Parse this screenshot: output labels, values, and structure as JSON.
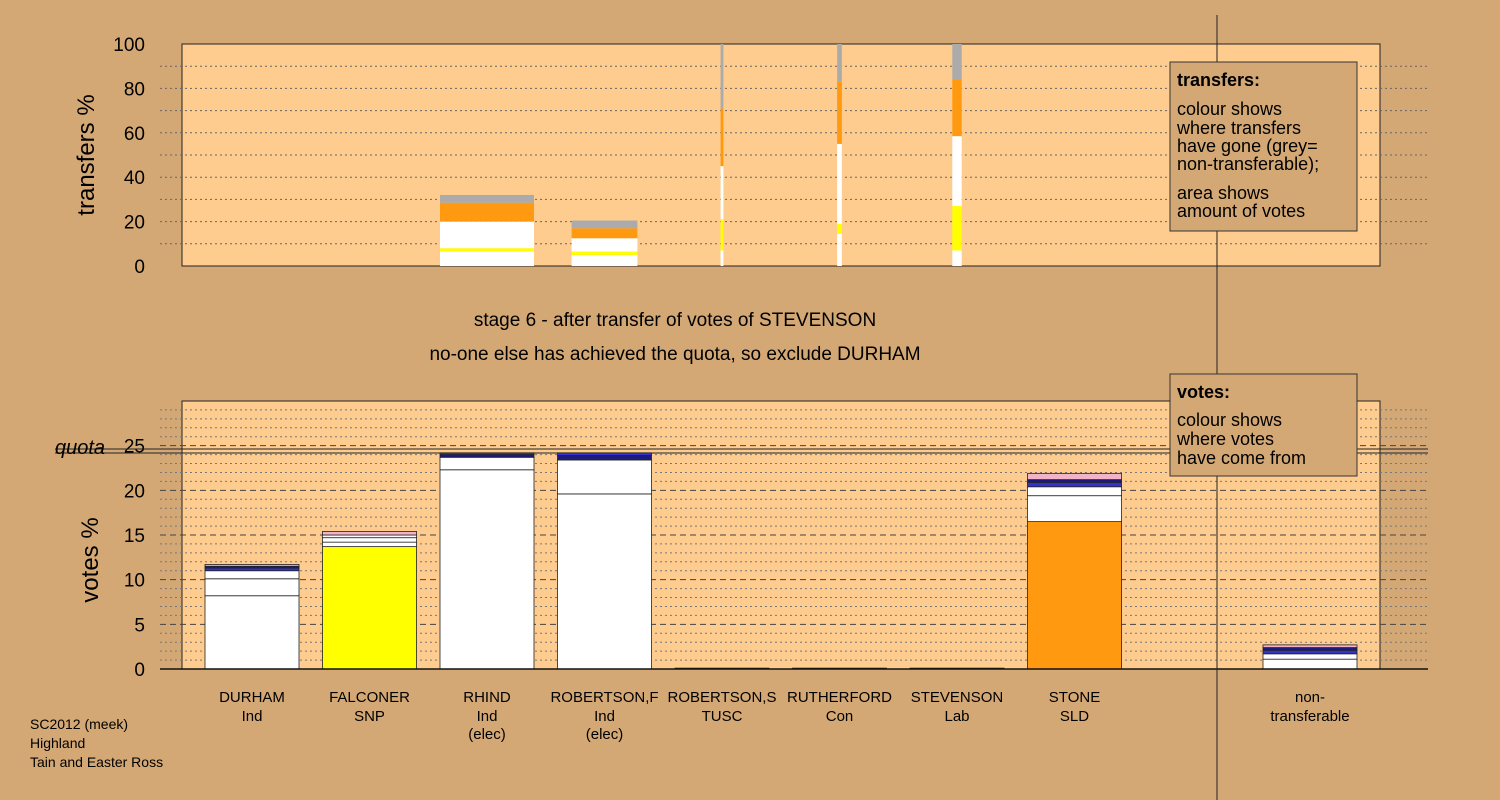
{
  "chart_data": [
    {
      "type": "bar",
      "stacked": true,
      "ylabel": "transfers %",
      "ylim": [
        0,
        100
      ],
      "yticks": [
        0,
        20,
        40,
        60,
        80,
        100
      ],
      "categories": [
        "DURHAM",
        "FALCONER",
        "RHIND",
        "ROBERTSON,F",
        "ROBERTSON,S",
        "RUTHERFORD",
        "STEVENSON",
        "STONE"
      ],
      "bars": [
        {
          "category": "RHIND",
          "width": 1.0,
          "segments": [
            {
              "from": 0,
              "to": 6.5,
              "color": "white"
            },
            {
              "from": 6.5,
              "to": 8,
              "color": "yellow"
            },
            {
              "from": 8,
              "to": 20,
              "color": "white"
            },
            {
              "from": 20,
              "to": 28.5,
              "color": "orange"
            },
            {
              "from": 28.5,
              "to": 32,
              "color": "grey"
            }
          ]
        },
        {
          "category": "ROBERTSON,F",
          "width": 0.7,
          "segments": [
            {
              "from": 0,
              "to": 5,
              "color": "white"
            },
            {
              "from": 5,
              "to": 6.5,
              "color": "yellow"
            },
            {
              "from": 6.5,
              "to": 12.5,
              "color": "white"
            },
            {
              "from": 12.5,
              "to": 17,
              "color": "orange"
            },
            {
              "from": 17,
              "to": 20.5,
              "color": "grey"
            }
          ]
        },
        {
          "category": "ROBERTSON,S",
          "width": 0.03,
          "segments": [
            {
              "from": 0,
              "to": 7,
              "color": "white"
            },
            {
              "from": 7,
              "to": 21,
              "color": "yellow"
            },
            {
              "from": 21,
              "to": 45,
              "color": "white"
            },
            {
              "from": 45,
              "to": 71,
              "color": "orange"
            },
            {
              "from": 71,
              "to": 100,
              "color": "grey"
            }
          ]
        },
        {
          "category": "RUTHERFORD",
          "width": 0.05,
          "segments": [
            {
              "from": 0,
              "to": 14.5,
              "color": "white"
            },
            {
              "from": 14.5,
              "to": 19,
              "color": "yellow"
            },
            {
              "from": 19,
              "to": 55,
              "color": "white"
            },
            {
              "from": 55,
              "to": 83,
              "color": "orange"
            },
            {
              "from": 83,
              "to": 100,
              "color": "grey"
            }
          ]
        },
        {
          "category": "STEVENSON",
          "width": 0.1,
          "segments": [
            {
              "from": 0,
              "to": 7,
              "color": "white"
            },
            {
              "from": 7,
              "to": 27,
              "color": "yellow"
            },
            {
              "from": 27,
              "to": 58.5,
              "color": "white"
            },
            {
              "from": 58.5,
              "to": 84,
              "color": "orange"
            },
            {
              "from": 84,
              "to": 100,
              "color": "grey"
            }
          ]
        }
      ]
    },
    {
      "type": "bar",
      "stacked": true,
      "ylabel": "votes %",
      "ylim": [
        0,
        30
      ],
      "yticks": [
        0,
        5,
        10,
        15,
        20,
        25
      ],
      "quota": 24.4,
      "quota_label": "quota",
      "categories": [
        "DURHAM",
        "FALCONER",
        "RHIND",
        "ROBERTSON,F",
        "ROBERTSON,S",
        "RUTHERFORD",
        "STEVENSON",
        "STONE"
      ],
      "stacks": [
        {
          "category": "DURHAM",
          "segments": [
            {
              "value": 8.2,
              "color": "white"
            },
            {
              "value": 1.9,
              "color": "white"
            },
            {
              "value": 0.9,
              "color": "white"
            },
            {
              "value": 0.3,
              "color": "blue"
            },
            {
              "value": 0.2,
              "color": "navy"
            },
            {
              "value": 0.2,
              "color": "lightpink"
            }
          ]
        },
        {
          "category": "FALCONER",
          "segments": [
            {
              "value": 13.7,
              "color": "yellow"
            },
            {
              "value": 0.5,
              "color": "white"
            },
            {
              "value": 0.5,
              "color": "white"
            },
            {
              "value": 0.3,
              "color": "white"
            },
            {
              "value": 0.4,
              "color": "lightpink"
            }
          ]
        },
        {
          "category": "RHIND",
          "segments": [
            {
              "value": 22.3,
              "color": "white"
            },
            {
              "value": 1.4,
              "color": "white"
            },
            {
              "value": 0.3,
              "color": "navy"
            },
            {
              "value": 0.2,
              "color": "blue"
            }
          ]
        },
        {
          "category": "ROBERTSON,F",
          "segments": [
            {
              "value": 19.6,
              "color": "white"
            },
            {
              "value": 3.8,
              "color": "white"
            },
            {
              "value": 0.5,
              "color": "navy"
            },
            {
              "value": 0.3,
              "color": "blue"
            }
          ]
        },
        {
          "category": "ROBERTSON,S",
          "segments": [
            {
              "value": 0.1,
              "color": "white"
            }
          ]
        },
        {
          "category": "RUTHERFORD",
          "segments": [
            {
              "value": 0.1,
              "color": "white"
            }
          ]
        },
        {
          "category": "STEVENSON",
          "segments": [
            {
              "value": 0.1,
              "color": "white"
            }
          ]
        },
        {
          "category": "STONE",
          "segments": [
            {
              "value": 16.5,
              "color": "orange"
            },
            {
              "value": 2.9,
              "color": "white"
            },
            {
              "value": 1.0,
              "color": "white"
            },
            {
              "value": 0.5,
              "color": "blue"
            },
            {
              "value": 0.3,
              "color": "navy"
            },
            {
              "value": 0.7,
              "color": "lightpink"
            }
          ]
        }
      ],
      "nontransferable": {
        "label": "non-\ntransferable",
        "segments": [
          {
            "value": 1.1,
            "color": "white"
          },
          {
            "value": 0.6,
            "color": "white"
          },
          {
            "value": 0.4,
            "color": "blue"
          },
          {
            "value": 0.3,
            "color": "navy"
          },
          {
            "value": 0.3,
            "color": "lightpink"
          }
        ]
      }
    }
  ],
  "candidates": [
    {
      "name": "DURHAM",
      "party": "Ind",
      "note": ""
    },
    {
      "name": "FALCONER",
      "party": "SNP",
      "note": ""
    },
    {
      "name": "RHIND",
      "party": "Ind",
      "note": "(elec)"
    },
    {
      "name": "ROBERTSON,F",
      "party": "Ind",
      "note": "(elec)"
    },
    {
      "name": "ROBERTSON,S",
      "party": "TUSC",
      "note": ""
    },
    {
      "name": "RUTHERFORD",
      "party": "Con",
      "note": ""
    },
    {
      "name": "STEVENSON",
      "party": "Lab",
      "note": ""
    },
    {
      "name": "STONE",
      "party": "SLD",
      "note": ""
    }
  ],
  "stage_text": {
    "line1": "stage 6 - after transfer of votes of STEVENSON",
    "line2": "no-one else has achieved the quota, so exclude DURHAM"
  },
  "transfers_legend": {
    "title": "transfers:",
    "lines": [
      "colour shows",
      "where transfers",
      "have gone (grey=",
      "non-transferable);",
      "area shows",
      "amount of votes"
    ]
  },
  "votes_legend": {
    "title": "votes:",
    "lines": [
      "colour shows",
      "where votes",
      "have come from"
    ]
  },
  "footer": {
    "lines": [
      "SC2012 (meek)",
      "Highland",
      "Tain and Easter Ross"
    ]
  },
  "colors": {
    "background": "#D4A875",
    "plot_bg": "#FFCC8F",
    "white": "#FFFFFF",
    "yellow": "#FFFF00",
    "orange": "#FF9910",
    "grey": "#ABABAB",
    "navy": "#1A1A80",
    "blue": "#3333CC",
    "lightpink": "#F2B3C6"
  }
}
